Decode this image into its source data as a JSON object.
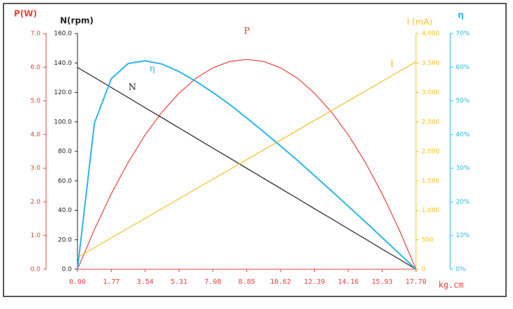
{
  "chart_data": {
    "type": "line",
    "x_label": "kg.cm",
    "x": [
      0,
      0.885,
      1.77,
      2.655,
      3.54,
      4.425,
      5.31,
      6.195,
      7.08,
      7.965,
      8.85,
      9.735,
      10.62,
      11.505,
      12.39,
      13.275,
      14.16,
      15.045,
      15.93,
      16.815,
      17.7
    ],
    "xlim": [
      0,
      17.7
    ],
    "xticks": [
      {
        "value": 0,
        "label": "0.00"
      },
      1.77,
      3.54,
      5.31,
      7.08,
      8.85,
      10.62,
      12.39,
      14.16,
      15.93,
      {
        "value": 17.7,
        "label": "17.70"
      }
    ],
    "axes": [
      {
        "title": "P(W)",
        "color": "#e8413c",
        "lim": [
          0,
          7
        ],
        "ticks": [
          {
            "value": 0,
            "label": "0.0"
          },
          {
            "value": 1,
            "label": "1.0"
          },
          {
            "value": 2,
            "label": "2.0"
          },
          {
            "value": 3,
            "label": "3.0"
          },
          {
            "value": 4,
            "label": "4.0"
          },
          {
            "value": 5,
            "label": "5.0"
          },
          {
            "value": 6,
            "label": "6.0"
          },
          {
            "value": 7,
            "label": "7.0"
          }
        ]
      },
      {
        "title": "N(rpm)",
        "color": "#222222",
        "lim": [
          0,
          160
        ],
        "ticks": [
          {
            "value": 0,
            "label": "0.0"
          },
          {
            "value": 20,
            "label": "20.0"
          },
          {
            "value": 40,
            "label": "40.0"
          },
          {
            "value": 60,
            "label": "60.0"
          },
          {
            "value": 80,
            "label": "80.0"
          },
          {
            "value": 100,
            "label": "100.0"
          },
          {
            "value": 120,
            "label": "120.0"
          },
          {
            "value": 140,
            "label": "140.0"
          },
          {
            "value": 160,
            "label": "160.0"
          }
        ]
      },
      {
        "title": "I (mA)",
        "color": "#f5c026",
        "lim": [
          0,
          4000
        ],
        "ticks": [
          0,
          500,
          {
            "value": 1000,
            "label": "1,000"
          },
          {
            "value": 1500,
            "label": "1,500"
          },
          {
            "value": 2000,
            "label": "2,000"
          },
          {
            "value": 2500,
            "label": "2,500"
          },
          {
            "value": 3000,
            "label": "3,000"
          },
          {
            "value": 3500,
            "label": "3,500"
          },
          {
            "value": 4000,
            "label": "4,000"
          }
        ]
      },
      {
        "title": "η",
        "color": "#29b6e8",
        "lim": [
          0,
          70
        ],
        "ticks": [
          {
            "value": 0,
            "label": "0%"
          },
          {
            "value": 10,
            "label": "10%"
          },
          {
            "value": 20,
            "label": "20%"
          },
          {
            "value": 30,
            "label": "30%"
          },
          {
            "value": 40,
            "label": "40%"
          },
          {
            "value": 50,
            "label": "50%"
          },
          {
            "value": 60,
            "label": "60%"
          },
          {
            "value": 70,
            "label": "70%"
          }
        ]
      }
    ],
    "series": [
      {
        "name": "P",
        "color": "#e8413c",
        "axis": 0,
        "values": [
          0,
          1.18,
          2.24,
          3.18,
          3.99,
          4.67,
          5.23,
          5.67,
          5.98,
          6.17,
          6.23,
          6.17,
          5.98,
          5.67,
          5.23,
          4.67,
          3.99,
          3.18,
          2.24,
          1.18,
          0
        ]
      },
      {
        "name": "N",
        "color": "#222222",
        "axis": 1,
        "values": [
          137,
          130.2,
          123.3,
          116.5,
          109.6,
          102.8,
          95.9,
          89.1,
          82.2,
          75.4,
          68.5,
          61.7,
          54.8,
          48,
          41.1,
          34.3,
          27.4,
          20.6,
          13.7,
          6.9,
          0
        ]
      },
      {
        "name": "I",
        "color": "#f5c026",
        "axis": 2,
        "values": [
          200,
          366,
          532,
          698,
          864,
          1030,
          1196,
          1362,
          1528,
          1694,
          1860,
          2026,
          2192,
          2358,
          2524,
          2690,
          2856,
          3022,
          3188,
          3354,
          3520
        ]
      },
      {
        "name": "η",
        "color": "#29b6e8",
        "axis": 3,
        "values": [
          0,
          43.4,
          56.6,
          61.1,
          61.9,
          60.9,
          58.7,
          55.8,
          52.5,
          48.9,
          44.9,
          40.8,
          36.6,
          32.3,
          27.8,
          23.3,
          18.7,
          14.1,
          9.4,
          4.7,
          0
        ]
      }
    ]
  }
}
